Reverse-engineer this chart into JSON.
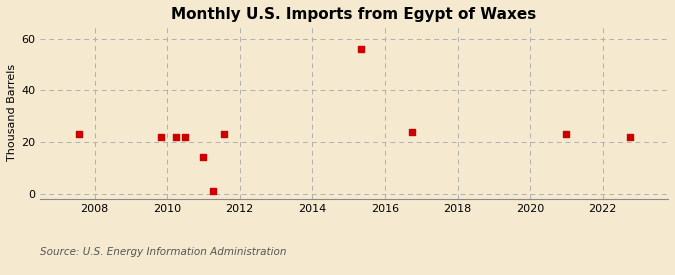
{
  "title": "Monthly U.S. Imports from Egypt of Waxes",
  "ylabel": "Thousand Barrels",
  "source_text": "Source: U.S. Energy Information Administration",
  "background_color": "#f5e9d0",
  "plot_bg_color": "#f5e9d0",
  "scatter_color": "#cc0000",
  "xlim": [
    2006.5,
    2023.8
  ],
  "ylim": [
    -2,
    65
  ],
  "yticks": [
    0,
    20,
    40,
    60
  ],
  "xticks": [
    2008,
    2010,
    2012,
    2014,
    2016,
    2018,
    2020,
    2022
  ],
  "grid_color": "#b0b0b0",
  "data_x": [
    2007.58,
    2009.83,
    2010.25,
    2010.5,
    2011.0,
    2011.25,
    2011.58,
    2015.33,
    2016.75,
    2021.0,
    2022.75
  ],
  "data_y": [
    23,
    22,
    22,
    22,
    14,
    1,
    23,
    56,
    24,
    23,
    22
  ],
  "marker_size": 18,
  "title_fontsize": 11,
  "tick_fontsize": 8,
  "ylabel_fontsize": 8,
  "source_fontsize": 7.5
}
